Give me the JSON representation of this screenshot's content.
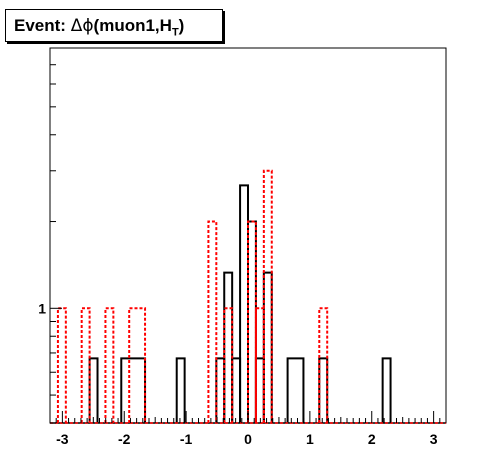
{
  "title": {
    "prefix": "Event: ",
    "delta": "Δ",
    "phi": "ϕ",
    "paren": "(muon1,",
    "h": "H",
    "sub": "T",
    "close": ")"
  },
  "chart_data": {
    "type": "histogram",
    "title": "Event: Δϕ(muon1,HT)",
    "xlim": [
      -3.2,
      3.2
    ],
    "y_scale": "log",
    "ylim": [
      0.4,
      8.0
    ],
    "x_ticks": [
      -3,
      -2,
      -1,
      0,
      1,
      2,
      3
    ],
    "x_tick_labels": [
      "-3",
      "-2",
      "-1",
      "0",
      "1",
      "2",
      "3"
    ],
    "y_tick_labels": [
      {
        "value": 1,
        "label": "1"
      }
    ],
    "bin_width": 0.128,
    "series": [
      {
        "color": "#000000",
        "style": "solid",
        "bins": [
          {
            "x0": -2.56,
            "x1": -2.432,
            "value": 0.67
          },
          {
            "x0": -2.048,
            "x1": -1.664,
            "value": 0.67
          },
          {
            "x0": -1.152,
            "x1": -1.024,
            "value": 0.67
          },
          {
            "x0": -0.512,
            "x1": -0.384,
            "value": 0.67
          },
          {
            "x0": -0.384,
            "x1": -0.256,
            "value": 1.33
          },
          {
            "x0": -0.256,
            "x1": -0.128,
            "value": 0.67
          },
          {
            "x0": -0.128,
            "x1": 0.0,
            "value": 2.67
          },
          {
            "x0": 0.0,
            "x1": 0.128,
            "value": 2.0
          },
          {
            "x0": 0.128,
            "x1": 0.256,
            "value": 0.67
          },
          {
            "x0": 0.256,
            "x1": 0.384,
            "value": 1.33
          },
          {
            "x0": 0.64,
            "x1": 0.896,
            "value": 0.67
          },
          {
            "x0": 1.152,
            "x1": 1.28,
            "value": 0.67
          },
          {
            "x0": 2.176,
            "x1": 2.304,
            "value": 0.67
          }
        ]
      },
      {
        "color": "#ff0000",
        "style": "dotted",
        "bins": [
          {
            "x0": -3.072,
            "x1": -2.944,
            "value": 1.0
          },
          {
            "x0": -2.688,
            "x1": -2.56,
            "value": 1.0
          },
          {
            "x0": -2.304,
            "x1": -2.176,
            "value": 1.0
          },
          {
            "x0": -1.92,
            "x1": -1.664,
            "value": 1.0
          },
          {
            "x0": -0.64,
            "x1": -0.512,
            "value": 2.0
          },
          {
            "x0": -0.384,
            "x1": -0.256,
            "value": 1.0
          },
          {
            "x0": 0.0,
            "x1": 0.128,
            "value": 2.0
          },
          {
            "x0": 0.128,
            "x1": 0.256,
            "value": 1.0
          },
          {
            "x0": 0.256,
            "x1": 0.384,
            "value": 3.0
          },
          {
            "x0": 1.152,
            "x1": 1.28,
            "value": 1.0
          }
        ]
      }
    ]
  }
}
